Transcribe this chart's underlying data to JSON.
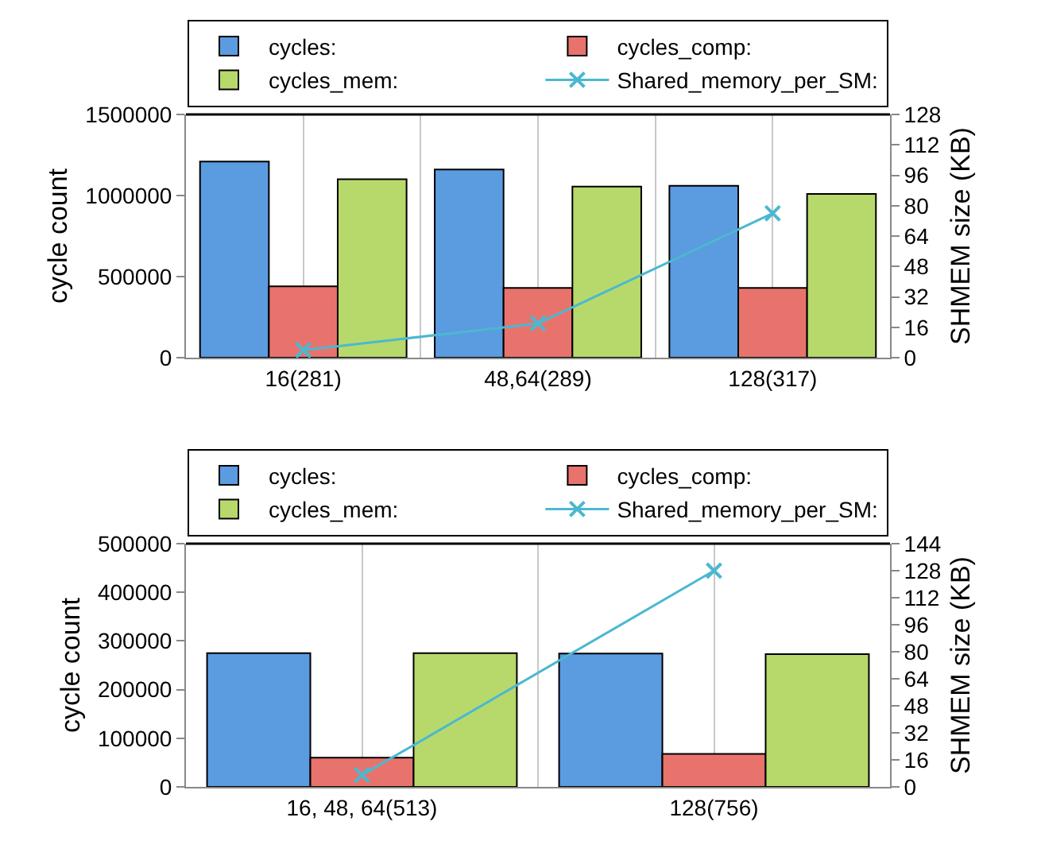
{
  "chart_data": [
    {
      "type": "bar",
      "categories": [
        "16(281)",
        "48,64(289)",
        "128(317)"
      ],
      "ylabel": "cycle count",
      "y2label": "SHMEM size (KB)",
      "ylim": [
        0,
        1500000
      ],
      "yticks": [
        0,
        500000,
        1000000,
        1500000
      ],
      "y2lim": [
        0,
        128
      ],
      "y2ticks": [
        0,
        16,
        32,
        48,
        64,
        80,
        96,
        112,
        128
      ],
      "grid": "x",
      "legend": "top",
      "series": [
        {
          "name": "cycles:",
          "color": "#5b9be0",
          "values": [
            1210000,
            1160000,
            1060000
          ]
        },
        {
          "name": "cycles_comp:",
          "color": "#e8736d",
          "values": [
            440000,
            430000,
            430000
          ]
        },
        {
          "name": "cycles_mem:",
          "color": "#b7d96c",
          "values": [
            1100000,
            1055000,
            1010000
          ]
        },
        {
          "name": "Shared_memory_per_SM:",
          "type": "line",
          "axis": "y2",
          "marker": "cross",
          "color": "#4bb8d0",
          "values": [
            4,
            18,
            76
          ]
        }
      ]
    },
    {
      "type": "bar",
      "categories": [
        "16, 48, 64(513)",
        "128(756)"
      ],
      "ylabel": "cycle count",
      "y2label": "SHMEM size (KB)",
      "ylim": [
        0,
        500000
      ],
      "yticks": [
        0,
        100000,
        200000,
        300000,
        400000,
        500000
      ],
      "y2lim": [
        0,
        144
      ],
      "y2ticks": [
        0,
        16,
        32,
        48,
        64,
        80,
        96,
        112,
        128,
        144
      ],
      "grid": "x",
      "legend": "top",
      "series": [
        {
          "name": "cycles:",
          "color": "#5b9be0",
          "values": [
            275000,
            274000
          ]
        },
        {
          "name": "cycles_comp:",
          "color": "#e8736d",
          "values": [
            60000,
            68000
          ]
        },
        {
          "name": "cycles_mem:",
          "color": "#b7d96c",
          "values": [
            275000,
            273000
          ]
        },
        {
          "name": "Shared_memory_per_SM:",
          "type": "line",
          "axis": "y2",
          "marker": "cross",
          "color": "#4bb8d0",
          "values": [
            7,
            128
          ]
        }
      ]
    }
  ]
}
